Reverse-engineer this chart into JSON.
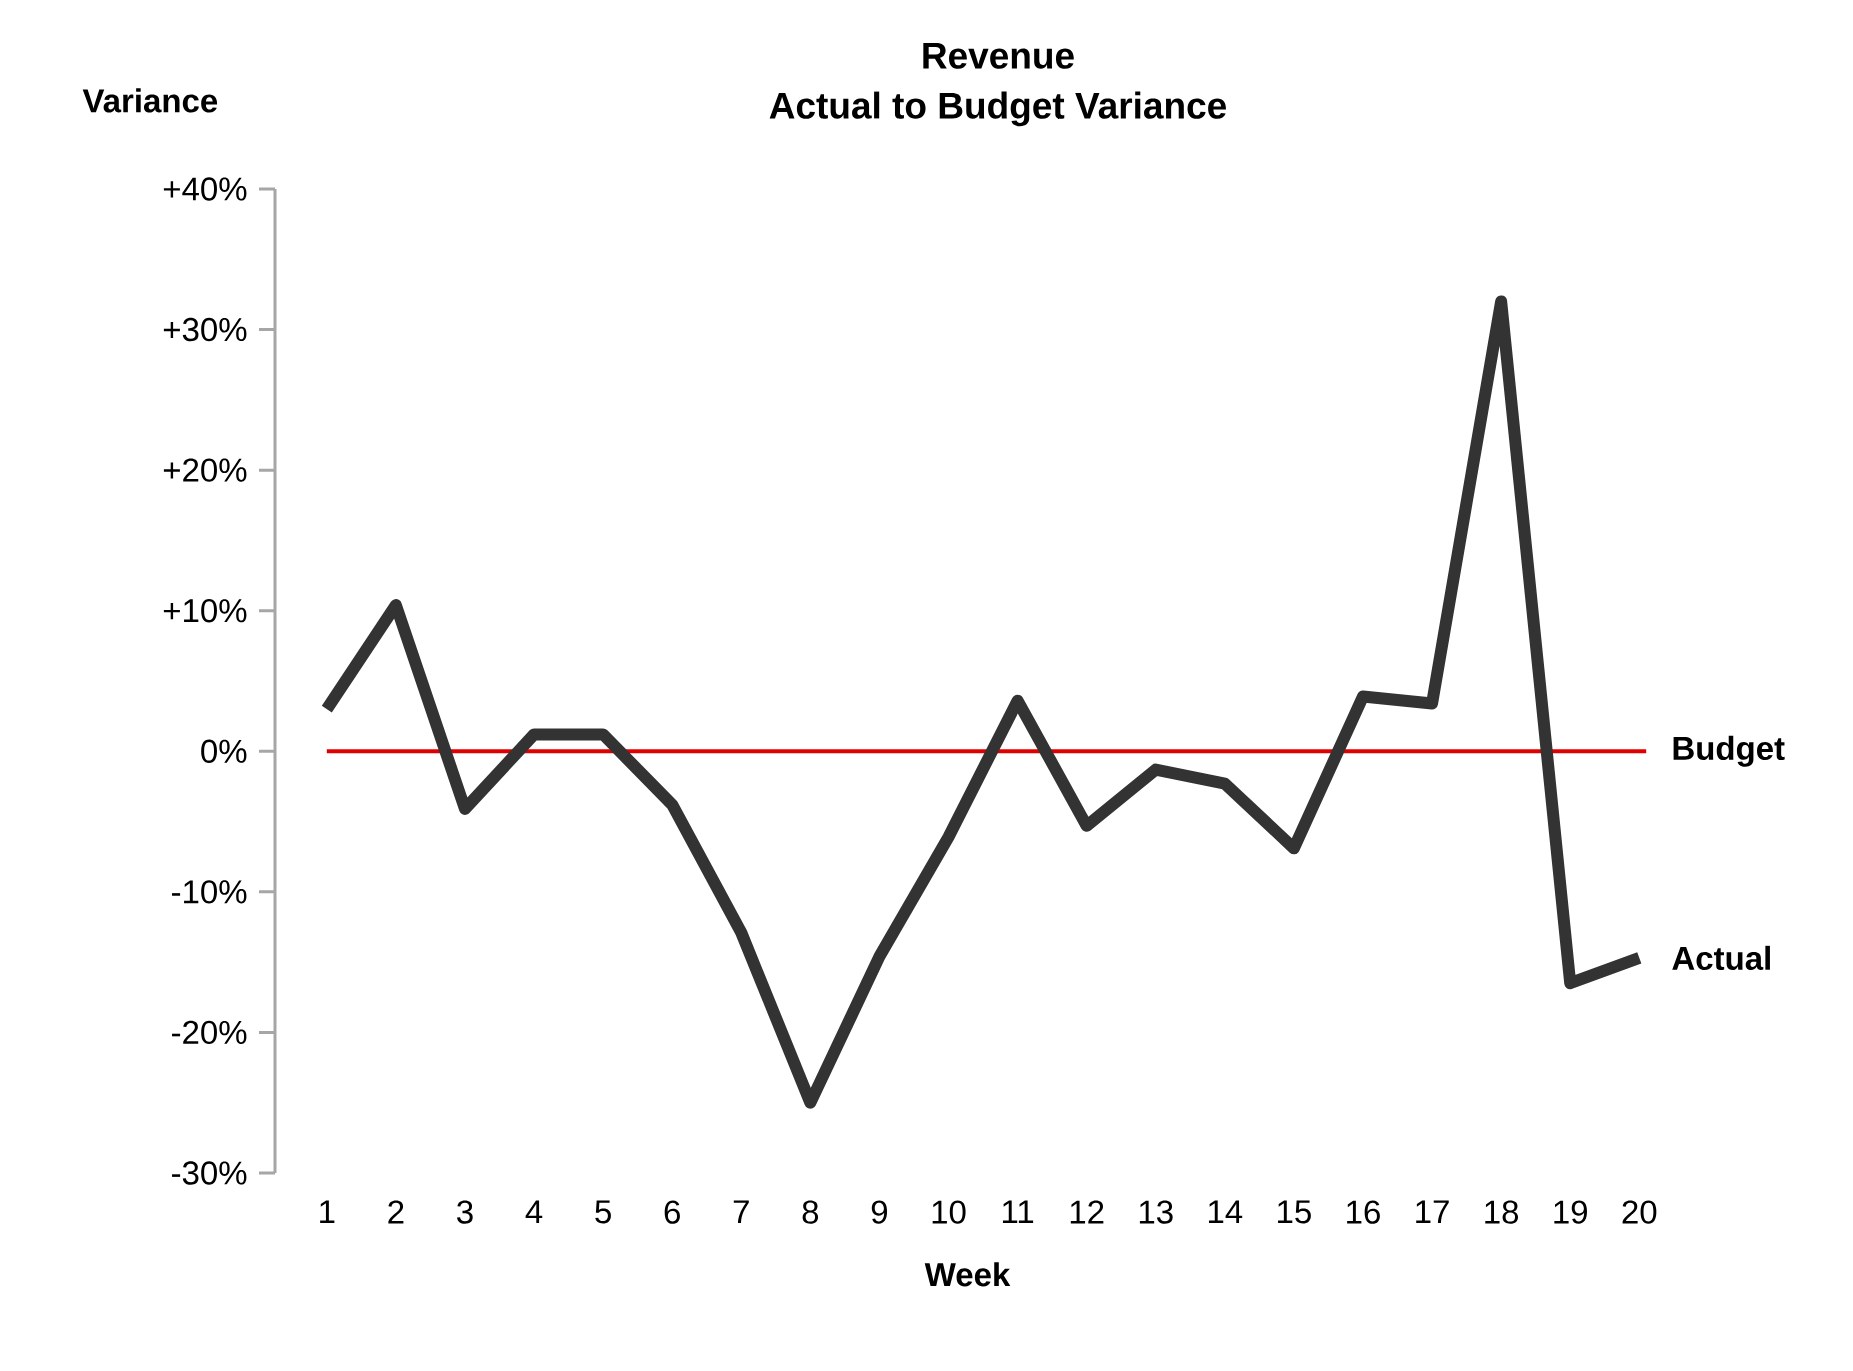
{
  "chart_data": {
    "type": "line",
    "title": "Revenue",
    "subtitle": "Actual to Budget Variance",
    "xlabel": "Week",
    "ylabel": "Variance",
    "categories": [
      "1",
      "2",
      "3",
      "4",
      "5",
      "6",
      "7",
      "8",
      "9",
      "10",
      "11",
      "12",
      "13",
      "14",
      "15",
      "16",
      "17",
      "18",
      "19",
      "20"
    ],
    "series": [
      {
        "name": "Actual",
        "color": "#333333",
        "values": [
          3.0,
          10.4,
          -4.1,
          1.2,
          1.2,
          -3.8,
          -12.9,
          -25.0,
          -14.6,
          -6.1,
          3.6,
          -5.3,
          -1.3,
          -2.3,
          -6.9,
          3.9,
          3.4,
          32.0,
          -16.5,
          -14.7
        ]
      }
    ],
    "ylim": [
      -30,
      40
    ],
    "yticks": [
      {
        "value": -30,
        "label": "-30%"
      },
      {
        "value": -20,
        "label": "-20%"
      },
      {
        "value": -10,
        "label": "-10%"
      },
      {
        "value": 0,
        "label": "0%"
      },
      {
        "value": 10,
        "label": "+10%"
      },
      {
        "value": 20,
        "label": "+20%"
      },
      {
        "value": 30,
        "label": "+30%"
      },
      {
        "value": 40,
        "label": "+40%"
      }
    ],
    "ref_lines": [
      {
        "axis": "y",
        "value": 0,
        "label": "Budget",
        "color": "#e00000"
      }
    ]
  }
}
